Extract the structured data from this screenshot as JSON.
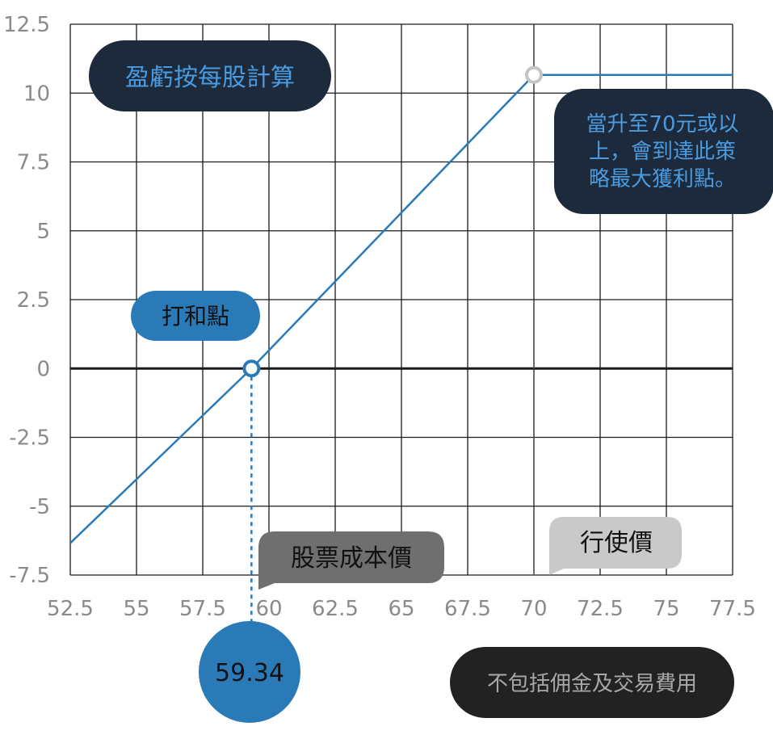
{
  "chart_data": {
    "type": "line",
    "x": [
      52.5,
      59.34,
      70,
      77.5
    ],
    "y": [
      -6.34,
      0,
      10.66,
      10.66
    ],
    "xlim": [
      52.5,
      77.5
    ],
    "ylim": [
      -7.5,
      12.5
    ],
    "x_ticks": [
      "52.5",
      "55",
      "57.5",
      "60",
      "62.5",
      "65",
      "67.5",
      "70",
      "72.5",
      "75",
      "77.5"
    ],
    "y_ticks": [
      "12.5",
      "10",
      "7.5",
      "5",
      "2.5",
      "0",
      "-2.5",
      "-5",
      "-7.5"
    ],
    "grid": true,
    "breakeven": 59.34,
    "strike": 70,
    "max_profit": 10.66
  },
  "labels": {
    "title": "盈虧按每股計算",
    "max_profit_note": [
      "當升至70元或以",
      "上，會到達此策",
      "略最大獲利點。"
    ],
    "breakeven_label": "打和點",
    "cost_label": "股票成本價",
    "cost_value": "59.34",
    "strike_label": "行使價",
    "fee_note": "不包括佣金及交易費用"
  },
  "colors": {
    "line": "#2a7ab8",
    "dark_bubble": "#1c2a3b",
    "blue_bubble": "#2a7ab8",
    "gray_bubble": "#6f6f6f",
    "light_bubble": "#c9c9c9",
    "note_bubble": "#222222"
  }
}
